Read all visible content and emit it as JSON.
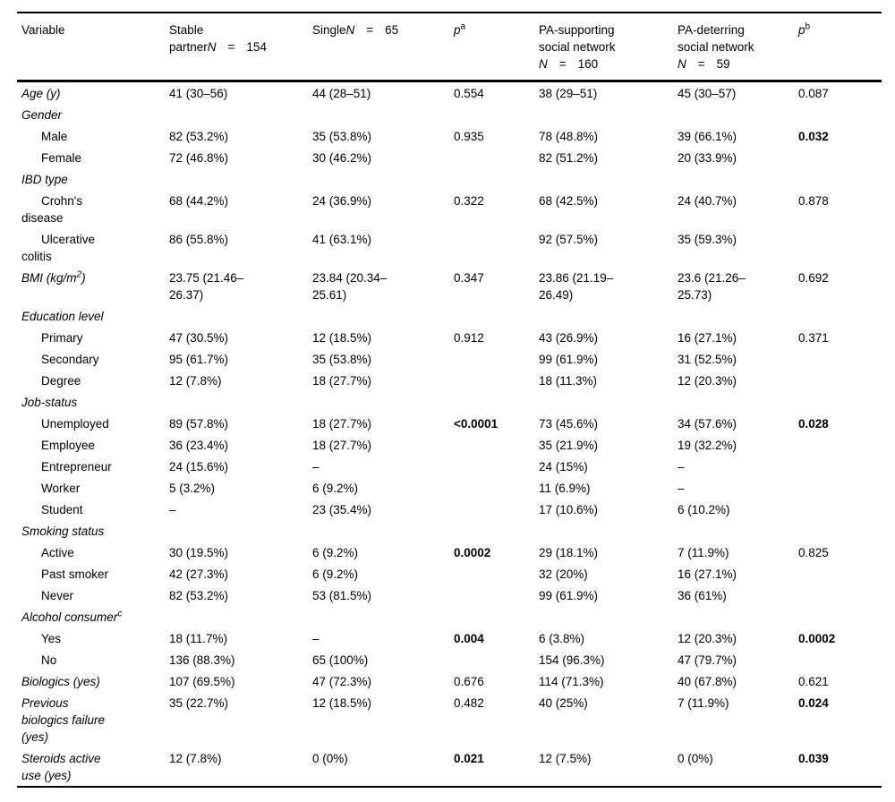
{
  "style": {
    "background": "#ffffff",
    "text_color": "#000000",
    "rule_color": "#000000"
  },
  "header": {
    "variable": "Variable",
    "stable": {
      "line1": "Stable",
      "line2_prefix": "partner",
      "n": "N",
      "eq": "=",
      "count": "154"
    },
    "single": {
      "prefix": "Single",
      "n": "N",
      "eq": "=",
      "count": "65"
    },
    "p_a": {
      "p": "p",
      "sup": "a"
    },
    "pa_supporting": {
      "line1": "PA-supporting",
      "line2": "social network",
      "n": "N",
      "eq": "=",
      "count": "160"
    },
    "pa_deterring": {
      "line1": "PA-deterring",
      "line2": "social network",
      "n": "N",
      "eq": "=",
      "count": "59"
    },
    "p_b": {
      "p": "p",
      "sup": "b"
    }
  },
  "rows": [
    {
      "type": "cat",
      "label": "Age (y)",
      "cells": [
        "41 (30–56)",
        "44 (28–51)",
        "0.554",
        "38 (29–51)",
        "45 (30–57)",
        "0.087"
      ],
      "bold": []
    },
    {
      "type": "cat",
      "label": "Gender",
      "cells": [
        "",
        "",
        "",
        "",
        "",
        ""
      ],
      "bold": []
    },
    {
      "type": "sub",
      "label": "Male",
      "cells": [
        "82 (53.2%)",
        "35 (53.8%)",
        "0.935",
        "78 (48.8%)",
        "39 (66.1%)",
        "0.032"
      ],
      "bold": [
        5
      ]
    },
    {
      "type": "sub",
      "label": "Female",
      "cells": [
        "72 (46.8%)",
        "30 (46.2%)",
        "",
        "82 (51.2%)",
        "20 (33.9%)",
        ""
      ],
      "bold": []
    },
    {
      "type": "cat",
      "label": "IBD type",
      "cells": [
        "",
        "",
        "",
        "",
        "",
        ""
      ],
      "bold": []
    },
    {
      "type": "sub",
      "label": "Crohn's\ndisease",
      "cells": [
        "68 (44.2%)",
        "24 (36.9%)",
        "0.322",
        "68 (42.5%)",
        "24 (40.7%)",
        "0.878"
      ],
      "bold": []
    },
    {
      "type": "sub",
      "label": "Ulcerative\ncolitis",
      "cells": [
        "86 (55.8%)",
        "41 (63.1%)",
        "",
        "92 (57.5%)",
        "35 (59.3%)",
        ""
      ],
      "bold": []
    },
    {
      "type": "cat",
      "label": {
        "pre": "BMI (kg/m",
        "sup": "2",
        "post": ")"
      },
      "cells": [
        "23.75 (21.46–\n26.37)",
        "23.84 (20.34–\n25.61)",
        "0.347",
        "23.86 (21.19–\n26.49)",
        "23.6 (21.26–\n25.73)",
        "0.692"
      ],
      "bold": []
    },
    {
      "type": "cat",
      "label": "Education level",
      "cells": [
        "",
        "",
        "",
        "",
        "",
        ""
      ],
      "bold": []
    },
    {
      "type": "sub",
      "label": "Primary",
      "cells": [
        "47 (30.5%)",
        "12 (18.5%)",
        "0.912",
        "43 (26.9%)",
        "16 (27.1%)",
        "0.371"
      ],
      "bold": []
    },
    {
      "type": "sub",
      "label": "Secondary",
      "cells": [
        "95 (61.7%)",
        "35 (53.8%)",
        "",
        "99 (61.9%)",
        "31 (52.5%)",
        ""
      ],
      "bold": []
    },
    {
      "type": "sub",
      "label": "Degree",
      "cells": [
        "12 (7.8%)",
        "18 (27.7%)",
        "",
        "18 (11.3%)",
        "12 (20.3%)",
        ""
      ],
      "bold": []
    },
    {
      "type": "cat",
      "label": "Job-status",
      "cells": [
        "",
        "",
        "",
        "",
        "",
        ""
      ],
      "bold": []
    },
    {
      "type": "sub",
      "label": "Unemployed",
      "cells": [
        "89 (57.8%)",
        "18 (27.7%)",
        "<0.0001",
        "73 (45.6%)",
        "34 (57.6%)",
        "0.028"
      ],
      "bold": [
        2,
        5
      ]
    },
    {
      "type": "sub",
      "label": "Employee",
      "cells": [
        "36 (23.4%)",
        "18 (27.7%)",
        "",
        "35 (21.9%)",
        "19 (32.2%)",
        ""
      ],
      "bold": []
    },
    {
      "type": "sub",
      "label": "Entrepreneur",
      "cells": [
        "24 (15.6%)",
        "–",
        "",
        "24 (15%)",
        "–",
        ""
      ],
      "bold": []
    },
    {
      "type": "sub",
      "label": "Worker",
      "cells": [
        "5 (3.2%)",
        "6 (9.2%)",
        "",
        "11 (6.9%)",
        "–",
        ""
      ],
      "bold": []
    },
    {
      "type": "sub",
      "label": "Student",
      "cells": [
        "–",
        "23 (35.4%)",
        "",
        "17 (10.6%)",
        "6 (10.2%)",
        ""
      ],
      "bold": []
    },
    {
      "type": "cat",
      "label": "Smoking status",
      "cells": [
        "",
        "",
        "",
        "",
        "",
        ""
      ],
      "bold": []
    },
    {
      "type": "sub",
      "label": "Active",
      "cells": [
        "30 (19.5%)",
        "6 (9.2%)",
        "0.0002",
        "29 (18.1%)",
        "7 (11.9%)",
        "0.825"
      ],
      "bold": [
        2
      ]
    },
    {
      "type": "sub",
      "label": "Past smoker",
      "cells": [
        "42 (27.3%)",
        "6 (9.2%)",
        "",
        "32 (20%)",
        "16 (27.1%)",
        ""
      ],
      "bold": []
    },
    {
      "type": "sub",
      "label": "Never",
      "cells": [
        "82 (53.2%)",
        "53 (81.5%)",
        "",
        "99 (61.9%)",
        "36 (61%)",
        ""
      ],
      "bold": []
    },
    {
      "type": "cat",
      "label": {
        "pre": "Alcohol consumer",
        "sup": "c",
        "post": ""
      },
      "cells": [
        "",
        "",
        "",
        "",
        "",
        ""
      ],
      "bold": []
    },
    {
      "type": "sub",
      "label": "Yes",
      "cells": [
        "18 (11.7%)",
        "–",
        "0.004",
        "6 (3.8%)",
        "12 (20.3%)",
        "0.0002"
      ],
      "bold": [
        2,
        5
      ]
    },
    {
      "type": "sub",
      "label": "No",
      "cells": [
        "136 (88.3%)",
        "65 (100%)",
        "",
        "154 (96.3%)",
        "47 (79.7%)",
        ""
      ],
      "bold": []
    },
    {
      "type": "cat",
      "label": "Biologics (yes)",
      "cells": [
        "107 (69.5%)",
        "47 (72.3%)",
        "0.676",
        "114 (71.3%)",
        "40 (67.8%)",
        "0.621"
      ],
      "bold": []
    },
    {
      "type": "cat",
      "label": "Previous\nbiologics failure\n(yes)",
      "cells": [
        "35 (22.7%)",
        "12 (18.5%)",
        "0.482",
        "40 (25%)",
        "7 (11.9%)",
        "0.024"
      ],
      "bold": [
        5
      ]
    },
    {
      "type": "cat",
      "label": "Steroids active\nuse (yes)",
      "cells": [
        "12 (7.8%)",
        "0 (0%)",
        "0.021",
        "12 (7.5%)",
        "0 (0%)",
        "0.039"
      ],
      "bold": [
        2,
        5
      ]
    }
  ]
}
